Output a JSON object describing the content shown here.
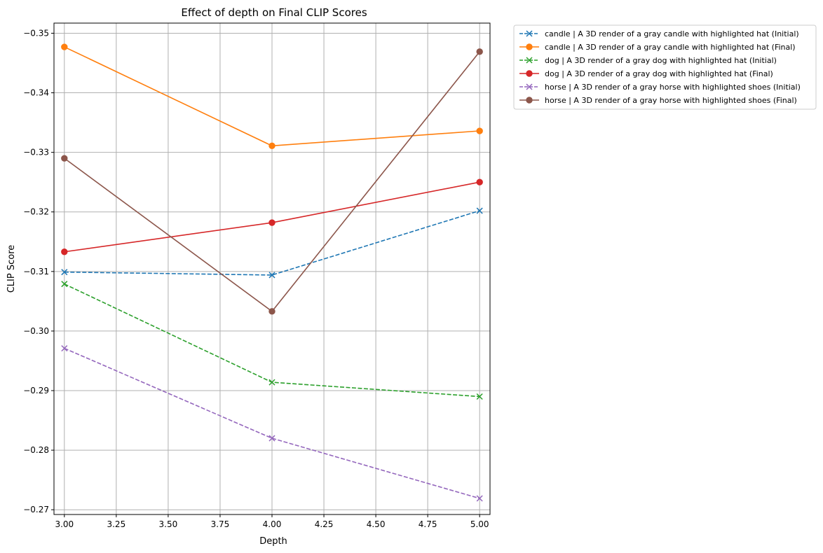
{
  "chart_data": {
    "type": "line",
    "title": "Effect of depth on Final CLIP Scores",
    "xlabel": "Depth",
    "ylabel": "CLIP Score",
    "xlim": [
      2.95,
      5.05
    ],
    "ylim": [
      -0.2692,
      -0.3517
    ],
    "y_inverted": true,
    "grid": true,
    "legend_position": "outside top-right",
    "x_ticks": [
      3.0,
      3.25,
      3.5,
      3.75,
      4.0,
      4.25,
      4.5,
      4.75,
      5.0
    ],
    "x_tick_labels": [
      "3.00",
      "3.25",
      "3.50",
      "3.75",
      "4.00",
      "4.25",
      "4.50",
      "4.75",
      "5.00"
    ],
    "y_ticks": [
      -0.35,
      -0.34,
      -0.33,
      -0.32,
      -0.31,
      -0.3,
      -0.29,
      -0.28,
      -0.27
    ],
    "y_tick_labels": [
      "−0.35",
      "−0.34",
      "−0.33",
      "−0.32",
      "−0.31",
      "−0.30",
      "−0.29",
      "−0.28",
      "−0.27"
    ],
    "x": [
      3.0,
      4.0,
      5.0
    ],
    "series": [
      {
        "name": "candle | A 3D render of a gray candle with highlighted hat (Initial)",
        "values": [
          -0.3099,
          -0.3094,
          -0.3202
        ],
        "color": "#1f77b4",
        "linestyle": "dashed",
        "marker": "x"
      },
      {
        "name": "candle | A 3D render of a gray candle with highlighted hat (Final)",
        "values": [
          -0.3477,
          -0.3311,
          -0.3336
        ],
        "color": "#ff7f0e",
        "linestyle": "solid",
        "marker": "o"
      },
      {
        "name": "dog | A 3D render of a gray dog with highlighted hat (Initial)",
        "values": [
          -0.3079,
          -0.2914,
          -0.289
        ],
        "color": "#2ca02c",
        "linestyle": "dashed",
        "marker": "x"
      },
      {
        "name": "dog | A 3D render of a gray dog with highlighted hat (Final)",
        "values": [
          -0.3133,
          -0.3182,
          -0.325
        ],
        "color": "#d62728",
        "linestyle": "solid",
        "marker": "o"
      },
      {
        "name": "horse | A 3D render of a gray horse with highlighted shoes (Initial)",
        "values": [
          -0.2971,
          -0.282,
          -0.2719
        ],
        "color": "#9467bd",
        "linestyle": "dashed",
        "marker": "x"
      },
      {
        "name": "horse | A 3D render of a gray horse with highlighted shoes (Final)",
        "values": [
          -0.329,
          -0.3033,
          -0.3469
        ],
        "color": "#8c564b",
        "linestyle": "solid",
        "marker": "o"
      }
    ]
  }
}
